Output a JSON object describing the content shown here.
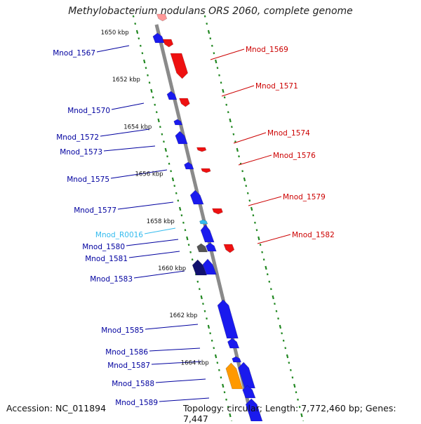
{
  "title": "Methylobacterium nodulans ORS 2060, complete genome",
  "accession": "Accession: NC_011894",
  "topology": "Topology: circular; Length: 7,772,460 bp; Genes: 7,447",
  "kbp_labels": [
    {
      "text": "1650 kbp",
      "kb": 1650
    },
    {
      "text": "1652 kbp",
      "kb": 1652
    },
    {
      "text": "1654 kbp",
      "kb": 1654
    },
    {
      "text": "1656 kbp",
      "kb": 1656
    },
    {
      "text": "1658 kbp",
      "kb": 1658
    },
    {
      "text": "1660 kbp",
      "kb": 1660
    },
    {
      "text": "1662 kbp",
      "kb": 1662
    },
    {
      "text": "1664 kbp",
      "kb": 1664
    }
  ],
  "left_labels": [
    {
      "text": "Mnod_1567",
      "color": "#00009f"
    },
    {
      "text": "Mnod_1570",
      "color": "#00009f"
    },
    {
      "text": "Mnod_1572",
      "color": "#00009f"
    },
    {
      "text": "Mnod_1573",
      "color": "#00009f"
    },
    {
      "text": "Mnod_1575",
      "color": "#00009f"
    },
    {
      "text": "Mnod_1577",
      "color": "#00009f"
    },
    {
      "text": "Mnod_R0016",
      "color": "#33bbee"
    },
    {
      "text": "Mnod_1580",
      "color": "#00009f"
    },
    {
      "text": "Mnod_1581",
      "color": "#00009f"
    },
    {
      "text": "Mnod_1583",
      "color": "#00009f"
    },
    {
      "text": "Mnod_1585",
      "color": "#00009f"
    },
    {
      "text": "Mnod_1586",
      "color": "#00009f"
    },
    {
      "text": "Mnod_1587",
      "color": "#00009f"
    },
    {
      "text": "Mnod_1588",
      "color": "#00009f"
    },
    {
      "text": "Mnod_1589",
      "color": "#00009f"
    }
  ],
  "right_labels": [
    {
      "text": "Mnod_1569",
      "color": "#cc0000"
    },
    {
      "text": "Mnod_1571",
      "color": "#cc0000"
    },
    {
      "text": "Mnod_1574",
      "color": "#cc0000"
    },
    {
      "text": "Mnod_1576",
      "color": "#cc0000"
    },
    {
      "text": "Mnod_1579",
      "color": "#cc0000"
    },
    {
      "text": "Mnod_1582",
      "color": "#cc0000"
    }
  ],
  "colors": {
    "forward_gene": "#1a1aee",
    "reverse_gene": "#ee1111",
    "rrna": "#33bbee",
    "pseudo": "#555555",
    "other": "#ff9900",
    "backbone": "#8a8a8a",
    "tick": "#228822"
  }
}
